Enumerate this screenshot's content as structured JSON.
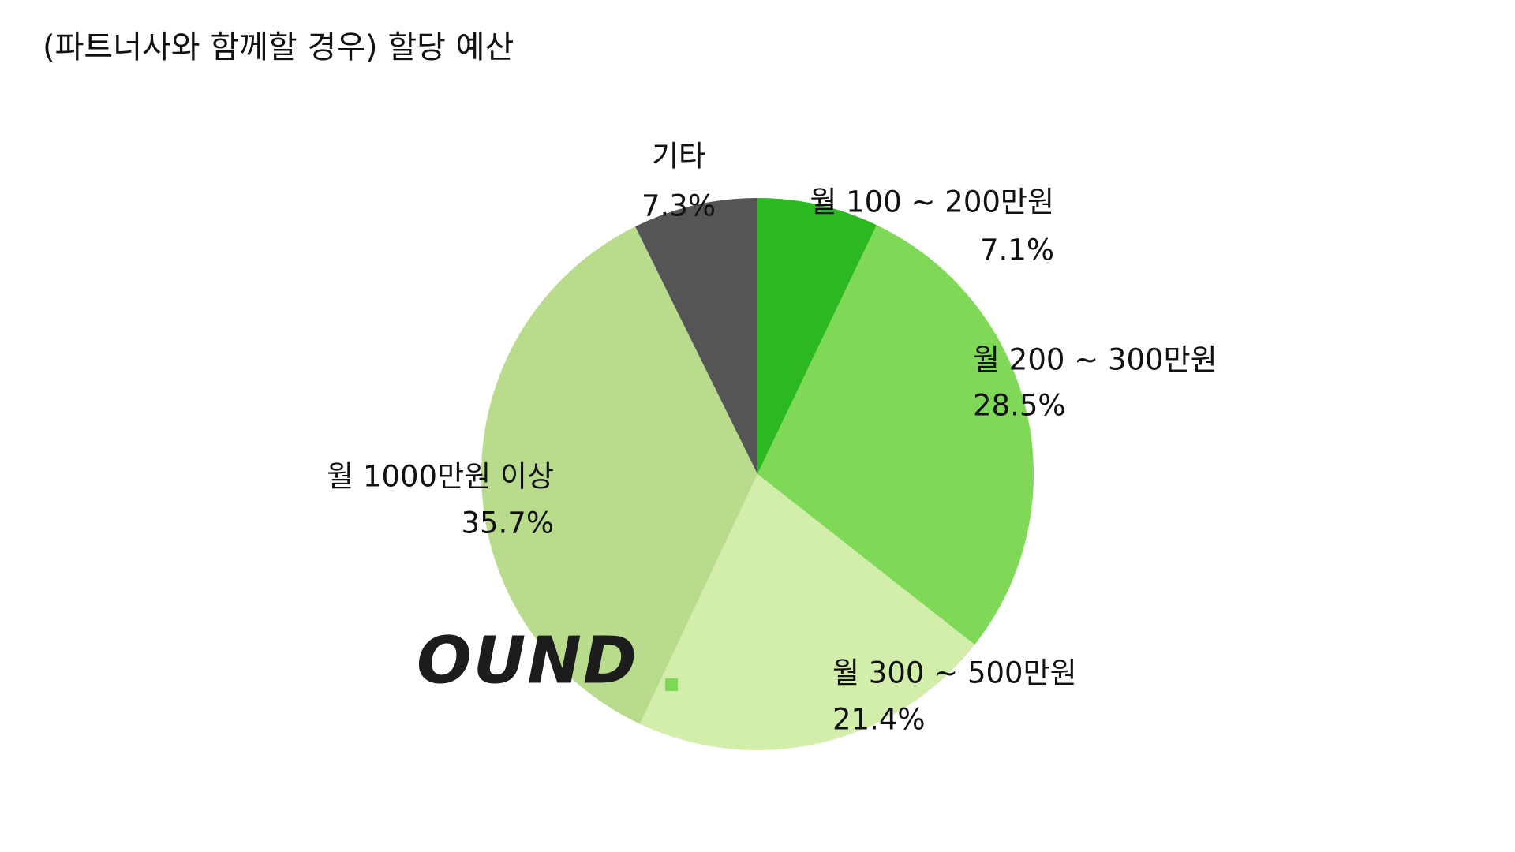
{
  "chart_data": {
    "type": "pie",
    "title": "(파트너사와 함께할 경우) 할당 예산",
    "categories": [
      "월 100 ~ 200만원",
      "월 200 ~ 300만원",
      "월 300 ~ 500만원",
      "월 1000만원 이상",
      "기타"
    ],
    "values": [
      7.1,
      28.5,
      21.4,
      35.7,
      7.3
    ],
    "value_labels": [
      "7.1%",
      "28.5%",
      "21.4%",
      "35.7%",
      "7.3%"
    ],
    "colors": [
      "#2bb820",
      "#7fd957",
      "#d3eeaa",
      "#b8db8c",
      "#555555"
    ]
  },
  "logo": "OUND"
}
